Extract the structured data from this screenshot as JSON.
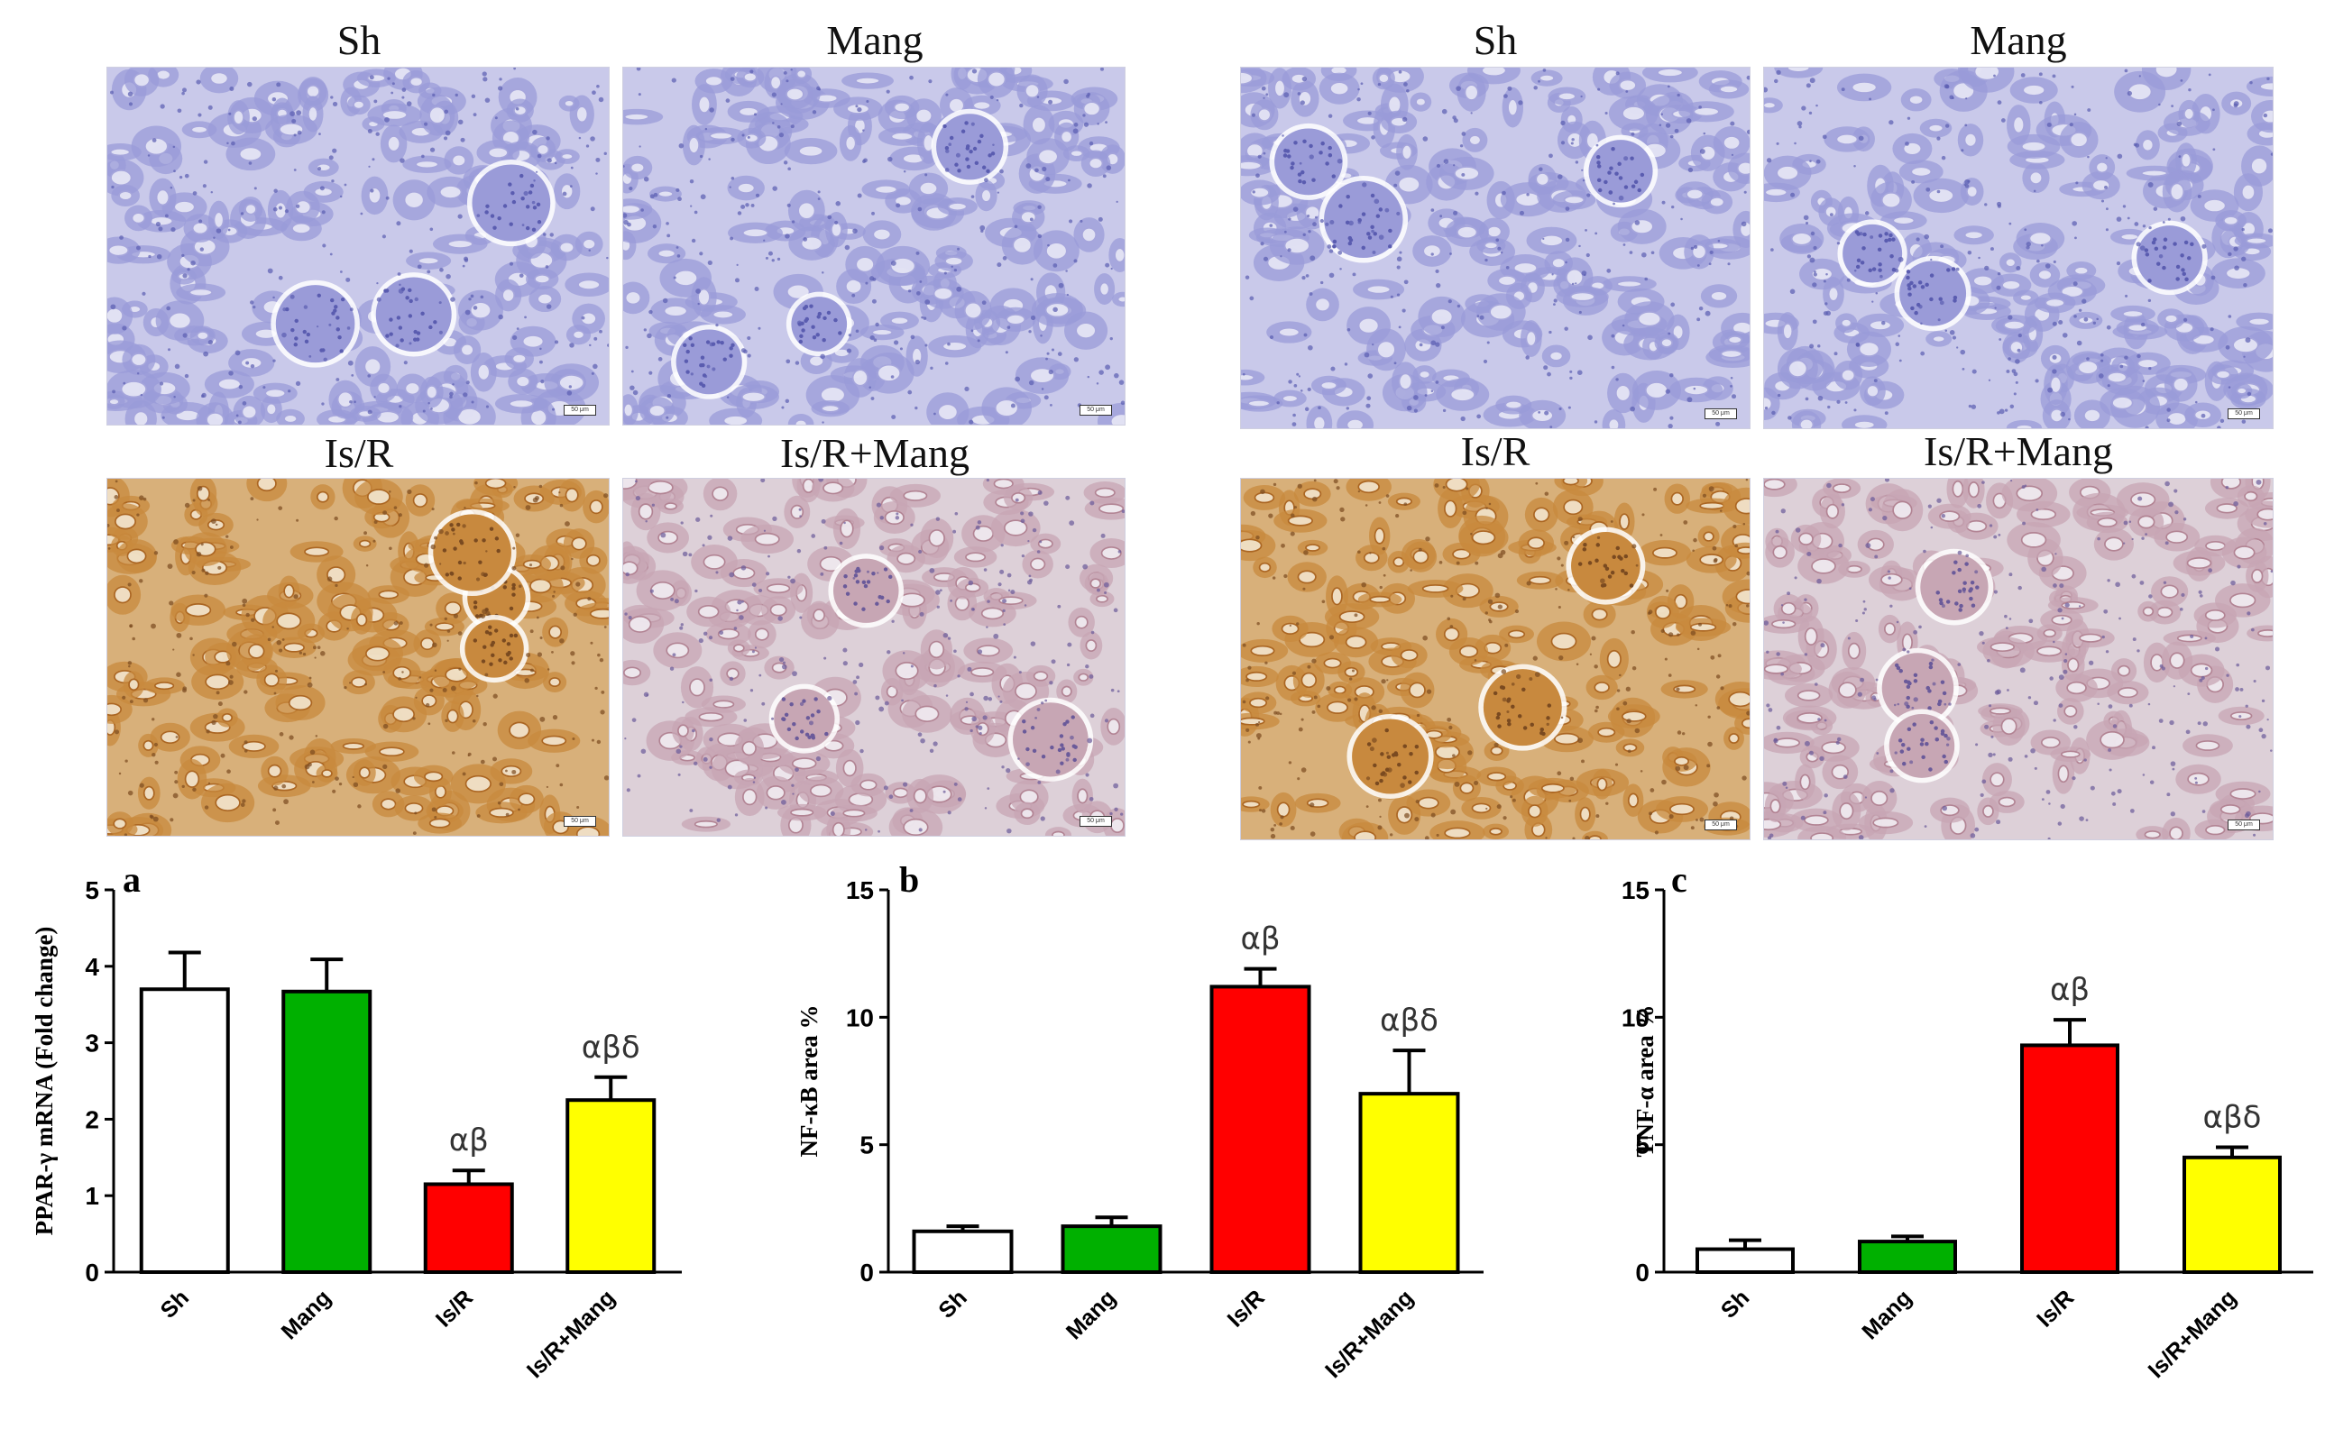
{
  "panels": [
    {
      "id": "ppar-sh",
      "label": "Sh",
      "stain": "negative"
    },
    {
      "id": "ppar-mang",
      "label": "Mang",
      "stain": "negative"
    },
    {
      "id": "ppar-isr",
      "label": "Is/R",
      "stain": "strong"
    },
    {
      "id": "ppar-isrmang",
      "label": "Is/R+Mang",
      "stain": "weak"
    },
    {
      "id": "nfkb-sh",
      "label": "Sh",
      "stain": "negative"
    },
    {
      "id": "nfkb-mang",
      "label": "Mang",
      "stain": "negative"
    },
    {
      "id": "nfkb-isr",
      "label": "Is/R",
      "stain": "strong"
    },
    {
      "id": "nfkb-isrmang",
      "label": "Is/R+Mang",
      "stain": "weak"
    }
  ],
  "scalebar_text": "50 μm",
  "colors": {
    "Sh": "#ffffff",
    "Mang": "#00b000",
    "Is/R": "#ff0000",
    "Is/R+Mang": "#ffff00"
  },
  "chart_data": [
    {
      "type": "bar",
      "panel_letter": "a",
      "ylabel": "PPAR-γ mRNA (Fold change)",
      "ylim": [
        0,
        5
      ],
      "yticks": [
        0,
        1,
        2,
        3,
        4,
        5
      ],
      "categories": [
        "Sh",
        "Mang",
        "Is/R",
        "Is/R+Mang"
      ],
      "values": [
        3.7,
        3.67,
        1.15,
        2.25
      ],
      "errors": [
        0.48,
        0.42,
        0.18,
        0.3
      ],
      "annotations": [
        "",
        "",
        "αβ",
        "αβδ"
      ]
    },
    {
      "type": "bar",
      "panel_letter": "b",
      "ylabel": "NF-κB area %",
      "ylim": [
        0,
        15
      ],
      "yticks": [
        0,
        5,
        10,
        15
      ],
      "categories": [
        "Sh",
        "Mang",
        "Is/R",
        "Is/R+Mang"
      ],
      "values": [
        1.6,
        1.8,
        11.2,
        7.0
      ],
      "errors": [
        0.2,
        0.35,
        0.7,
        1.7
      ],
      "annotations": [
        "",
        "",
        "αβ",
        "αβδ"
      ]
    },
    {
      "type": "bar",
      "panel_letter": "c",
      "ylabel": "TNF-α area %",
      "ylim": [
        0,
        15
      ],
      "yticks": [
        0,
        5,
        10,
        15
      ],
      "categories": [
        "Sh",
        "Mang",
        "Is/R",
        "Is/R+Mang"
      ],
      "values": [
        0.9,
        1.2,
        8.9,
        4.5
      ],
      "errors": [
        0.35,
        0.2,
        1.0,
        0.4
      ],
      "annotations": [
        "",
        "",
        "αβ",
        "αβδ"
      ]
    }
  ]
}
